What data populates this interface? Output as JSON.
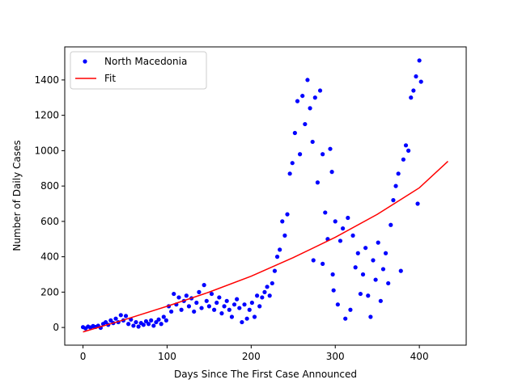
{
  "chart_data": {
    "type": "scatter",
    "xlabel": "Days Since The First Case Announced",
    "ylabel": "Number of Daily Cases",
    "xlim": [
      -21.7,
      455.7
    ],
    "ylim": [
      -100,
      1587
    ],
    "xticks": [
      0,
      100,
      200,
      300,
      400
    ],
    "yticks": [
      0,
      200,
      400,
      600,
      800,
      1000,
      1200,
      1400
    ],
    "legend": "upper left",
    "series": [
      {
        "name": "North Macedonia",
        "color": "#0000ff",
        "kind": "points",
        "x": [
          0,
          3,
          6,
          9,
          12,
          15,
          18,
          21,
          24,
          27,
          30,
          33,
          36,
          39,
          42,
          45,
          48,
          51,
          54,
          57,
          60,
          63,
          66,
          69,
          72,
          75,
          78,
          81,
          84,
          87,
          90,
          93,
          96,
          99,
          102,
          105,
          108,
          111,
          114,
          117,
          120,
          123,
          126,
          129,
          132,
          135,
          138,
          141,
          144,
          147,
          150,
          153,
          156,
          159,
          162,
          165,
          168,
          171,
          174,
          177,
          180,
          183,
          186,
          189,
          192,
          195,
          198,
          201,
          204,
          207,
          210,
          213,
          216,
          219,
          222,
          225,
          228,
          231,
          234,
          237,
          240,
          243,
          246,
          249,
          252,
          255,
          258,
          261,
          264,
          267,
          270,
          273,
          274,
          276,
          279,
          282,
          285,
          285,
          288,
          291,
          294,
          296,
          297,
          298,
          300,
          303,
          306,
          309,
          312,
          315,
          318,
          321,
          324,
          327,
          330,
          333,
          336,
          339,
          342,
          345,
          348,
          351,
          354,
          357,
          360,
          363,
          366,
          369,
          372,
          375,
          378,
          381,
          384,
          387,
          390,
          393,
          396,
          398,
          400,
          402
        ],
        "values": [
          2,
          -5,
          5,
          0,
          8,
          3,
          10,
          -2,
          20,
          30,
          15,
          40,
          25,
          50,
          30,
          70,
          40,
          65,
          20,
          45,
          10,
          30,
          5,
          25,
          15,
          35,
          20,
          40,
          10,
          30,
          45,
          20,
          60,
          40,
          120,
          90,
          190,
          130,
          170,
          100,
          150,
          180,
          120,
          165,
          90,
          140,
          200,
          110,
          240,
          150,
          120,
          190,
          100,
          140,
          170,
          80,
          120,
          150,
          100,
          60,
          130,
          160,
          110,
          30,
          130,
          50,
          100,
          140,
          60,
          180,
          120,
          170,
          200,
          230,
          180,
          250,
          320,
          400,
          440,
          600,
          520,
          640,
          870,
          930,
          1100,
          1280,
          980,
          1310,
          1150,
          1400,
          1240,
          1050,
          380,
          1300,
          820,
          1340,
          980,
          360,
          650,
          500,
          1010,
          880,
          300,
          210,
          600,
          130,
          490,
          560,
          50,
          620,
          100,
          520,
          340,
          420,
          190,
          300,
          450,
          180,
          60,
          380,
          270,
          480,
          150,
          330,
          420,
          250,
          580,
          720,
          800,
          870,
          320,
          950,
          1030,
          1000,
          1300,
          1340,
          1420,
          700,
          1510,
          1390
        ]
      },
      {
        "name": "Fit",
        "color": "#ff0000",
        "kind": "line",
        "x": [
          0,
          50,
          100,
          150,
          200,
          250,
          300,
          350,
          400,
          434
        ],
        "values": [
          -25,
          45,
          120,
          200,
          290,
          395,
          510,
          640,
          790,
          940
        ]
      }
    ]
  }
}
